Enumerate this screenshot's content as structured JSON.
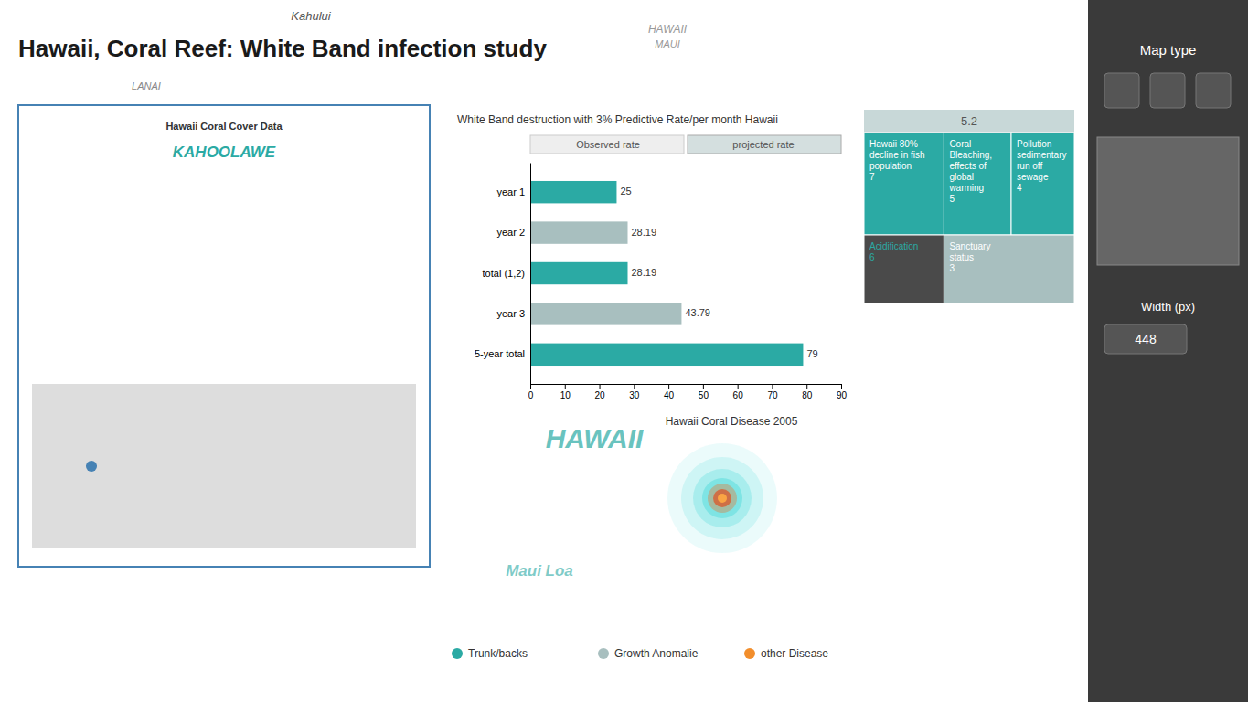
{
  "chart_data": {
    "type": "bar",
    "orientation": "horizontal",
    "title": "Hawaii, Coral Reef: White Band infection study",
    "subtitle": "White Band destruction with 3% Predictive Rate/per month Hawaii",
    "categories": [
      "year 1",
      "year 2",
      "total (1,2)",
      "year 3",
      "5-year total"
    ],
    "values": [
      25,
      28.19,
      28.19,
      43.79,
      79
    ],
    "colors": [
      "#2baaa4",
      "#a8bfbf",
      "#2baaa4",
      "#a8bfbf",
      "#2baaa4"
    ],
    "xlim": [
      0,
      90
    ],
    "xticks": [
      0,
      10,
      20,
      30,
      40,
      50,
      60,
      70,
      80,
      90
    ],
    "data_labels": true,
    "grid": false,
    "annotations": [
      "Kahului",
      "HAWAII",
      "MAUI",
      "LANAI",
      "Hawaii Coral Cover Data",
      "KAHOOLAWE",
      "Observed rate",
      "projected rate",
      "5.2",
      "Hawaii 80%\ndecline in fish\npopulation\n7",
      "Coral\nBleaching,\neffects of\nglobal\nwarming\n5",
      "Pollution\nsedimentary\nrun off\nsewage\n4",
      "Acidification\n6",
      "Sanctuary\nstatus\n3",
      "HAWAII",
      "Hawaii Coral Disease 2005",
      "Maui Loa",
      "Trunk/backs",
      "Growth Anomalie",
      "other Disease",
      "Map type",
      "Width (px)",
      "448"
    ]
  }
}
